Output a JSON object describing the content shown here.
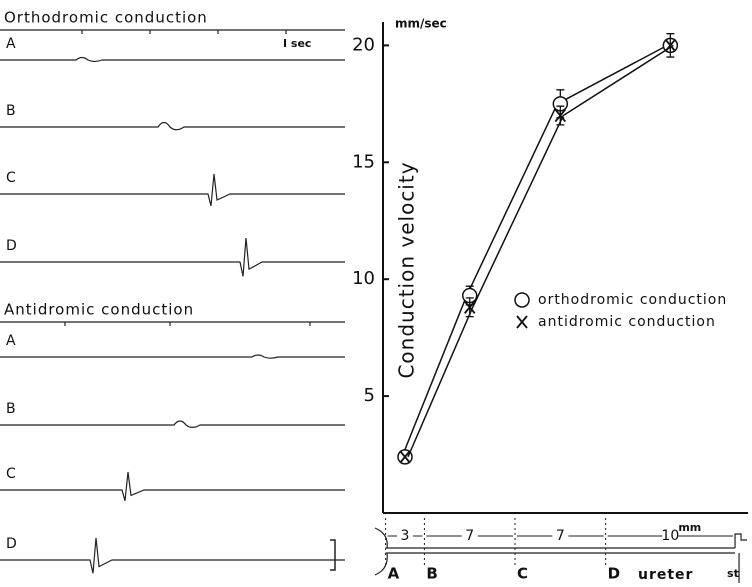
{
  "traces": {
    "orthodromic_title": "Orthodromic conduction",
    "antidromic_title": "Antidromic conduction",
    "labels": [
      "A",
      "B",
      "C",
      "D"
    ],
    "time_scale": "I sec"
  },
  "chart_data": {
    "type": "line",
    "y_label": "Conduction velocity",
    "y_unit": "mm/sec",
    "x": [
      1.5,
      6.5,
      13.5,
      22
    ],
    "series": [
      {
        "name": "orthodromic conduction",
        "color": "#111111",
        "marker": "o",
        "values": [
          2.4,
          9.3,
          17.5,
          20.0
        ],
        "errors": [
          null,
          0.4,
          0.6,
          null
        ]
      },
      {
        "name": "antidromic conduction",
        "color": "#111111",
        "marker": "x",
        "values": [
          2.4,
          8.8,
          17.0,
          20.0
        ],
        "errors": [
          null,
          0.4,
          0.4,
          0.5
        ]
      }
    ],
    "xlim": [
      -0.2,
      28
    ],
    "ylim": [
      0,
      21
    ],
    "yticks": [
      5,
      10,
      15,
      20
    ],
    "legend": "right"
  },
  "ureter_diagram": {
    "segments": [
      3,
      7,
      7,
      10
    ],
    "unit": "mm",
    "electrodes": [
      "A",
      "B",
      "C",
      "D"
    ],
    "ureter": "ureter",
    "stimulus": "st"
  }
}
